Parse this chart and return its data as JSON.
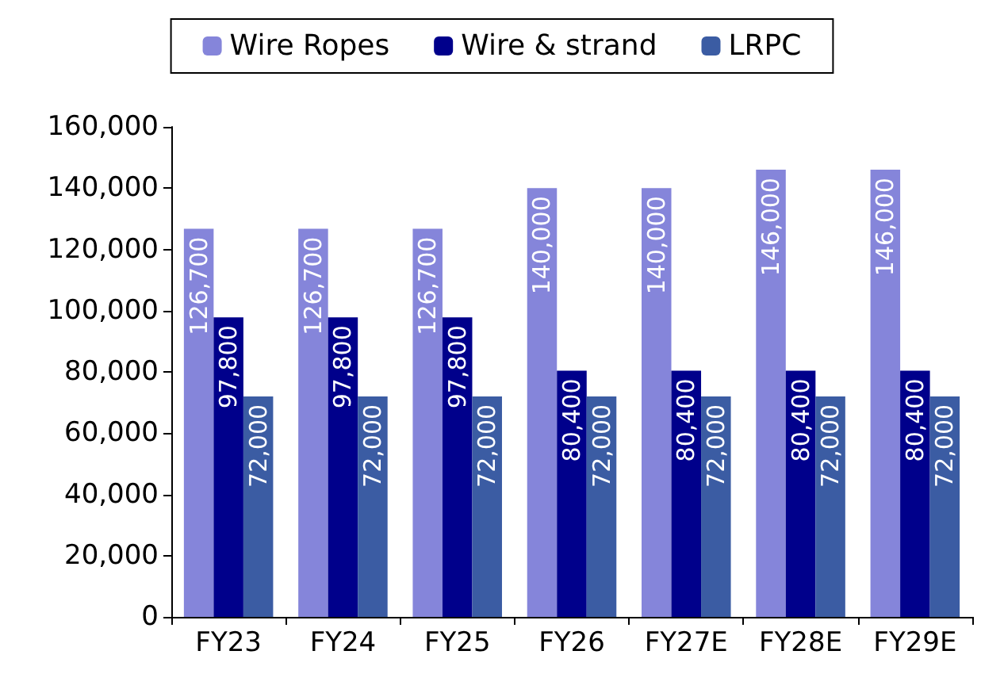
{
  "chart_data": {
    "type": "bar",
    "categories": [
      "FY23",
      "FY24",
      "FY25",
      "FY26",
      "FY27E",
      "FY28E",
      "FY29E"
    ],
    "series": [
      {
        "name": "Wire Ropes",
        "color": "#8585da",
        "values": [
          126700,
          126700,
          126700,
          140000,
          140000,
          146000,
          146000
        ],
        "value_labels": [
          "126,700",
          "126,700",
          "126,700",
          "140,000",
          "140,000",
          "146,000",
          "146,000"
        ]
      },
      {
        "name": "Wire & strand",
        "color": "#00008b",
        "values": [
          97800,
          97800,
          97800,
          80400,
          80400,
          80400,
          80400
        ],
        "value_labels": [
          "97,800",
          "97,800",
          "97,800",
          "80,400",
          "80,400",
          "80,400",
          "80,400"
        ]
      },
      {
        "name": "LRPC",
        "color": "#3b5ca3",
        "values": [
          72000,
          72000,
          72000,
          72000,
          72000,
          72000,
          72000
        ],
        "value_labels": [
          "72,000",
          "72,000",
          "72,000",
          "72,000",
          "72,000",
          "72,000",
          "72,000"
        ]
      }
    ],
    "ylim": [
      0,
      160000
    ],
    "yticks": [
      {
        "value": 0,
        "label": "0"
      },
      {
        "value": 20000,
        "label": "20,000"
      },
      {
        "value": 40000,
        "label": "40,000"
      },
      {
        "value": 60000,
        "label": "60,000"
      },
      {
        "value": 80000,
        "label": "80,000"
      },
      {
        "value": 100000,
        "label": "100,000"
      },
      {
        "value": 120000,
        "label": "120,000"
      },
      {
        "value": 140000,
        "label": "140,000"
      },
      {
        "value": 160000,
        "label": "160,000"
      }
    ],
    "grid": false,
    "legend": "top"
  }
}
